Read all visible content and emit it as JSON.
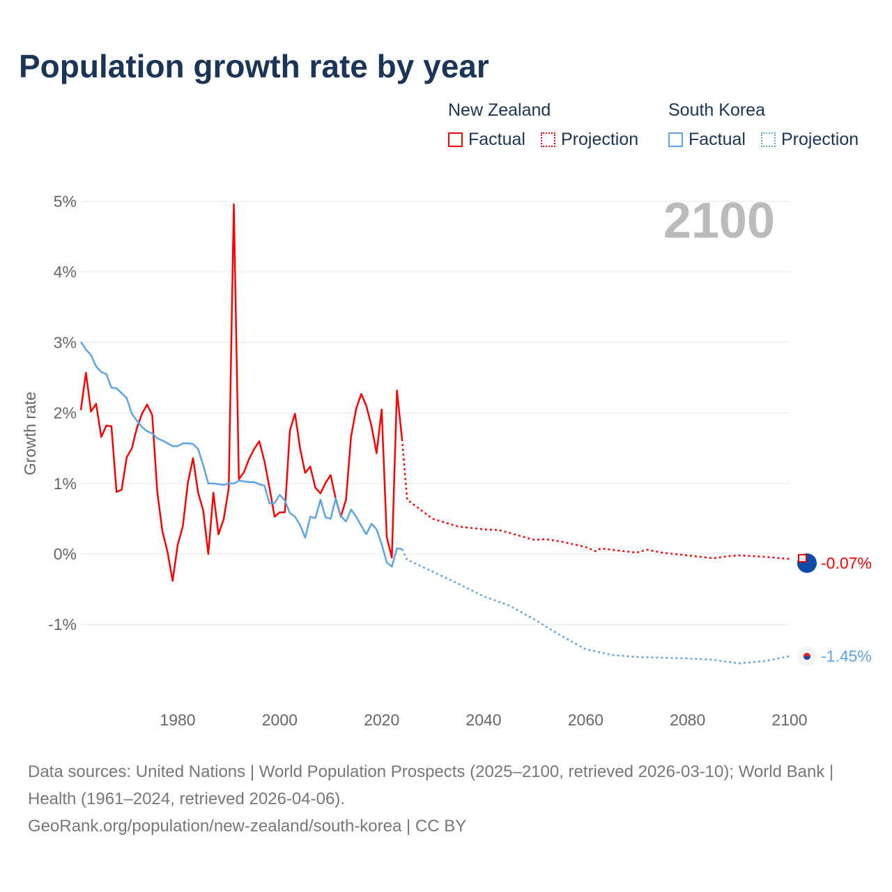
{
  "title": "Population growth rate by year",
  "legend": {
    "groups": [
      {
        "name": "New Zealand",
        "factual": "Factual",
        "projection": "Projection",
        "color": "#ff0000"
      },
      {
        "name": "South Korea",
        "factual": "Factual",
        "projection": "Projection",
        "color": "#5ba4e8"
      }
    ]
  },
  "year_label": "2100",
  "footer": {
    "sources": "Data sources: United Nations | World Population Prospects (2025–2100, retrieved 2026-03-10); World Bank | Health (1961–2024, retrieved 2026-04-06).",
    "link": "GeoRank.org/population/new-zealand/south-korea | CC BY"
  },
  "chart_data": {
    "type": "line",
    "title": "Population growth rate by year",
    "xlabel": "",
    "ylabel": "Growth rate",
    "xlim": [
      1961,
      2100
    ],
    "ylim": [
      -2,
      5
    ],
    "xticks": [
      1980,
      2000,
      2020,
      2040,
      2060,
      2080,
      2100
    ],
    "yticks": [
      -1,
      0,
      1,
      2,
      3,
      4,
      5
    ],
    "ytick_labels": [
      "-1%",
      "0%",
      "1%",
      "2%",
      "3%",
      "4%",
      "5%"
    ],
    "grid": true,
    "legend_placement": "top-right",
    "series": [
      {
        "name": "New Zealand",
        "color": "#ff0000",
        "end_label": "-0.07%",
        "factual_start": 1961,
        "factual": [
          2.04,
          2.57,
          2.02,
          2.13,
          1.66,
          1.82,
          1.81,
          0.88,
          0.91,
          1.37,
          1.5,
          1.79,
          1.99,
          2.12,
          1.97,
          0.88,
          0.32,
          0.03,
          -0.38,
          0.13,
          0.39,
          1.01,
          1.36,
          0.87,
          0.62,
          0.0,
          0.87,
          0.28,
          0.49,
          0.93,
          4.96,
          1.06,
          1.16,
          1.35,
          1.49,
          1.6,
          1.32,
          0.94,
          0.53,
          0.59,
          0.59,
          1.75,
          1.99,
          1.5,
          1.15,
          1.24,
          0.94,
          0.86,
          1.01,
          1.12,
          0.78,
          0.53,
          0.77,
          1.67,
          2.06,
          2.27,
          2.1,
          1.82,
          1.43,
          2.05,
          0.24,
          -0.05,
          2.32,
          1.63
        ],
        "projection_years": [
          2024,
          2025,
          2030,
          2035,
          2040,
          2043,
          2045,
          2050,
          2052,
          2055,
          2060,
          2062,
          2063,
          2065,
          2070,
          2072,
          2075,
          2080,
          2085,
          2088,
          2090,
          2095,
          2100
        ],
        "projection": [
          1.63,
          0.77,
          0.5,
          0.39,
          0.35,
          0.34,
          0.3,
          0.2,
          0.21,
          0.18,
          0.1,
          0.04,
          0.08,
          0.06,
          0.02,
          0.06,
          0.02,
          -0.02,
          -0.06,
          -0.03,
          -0.02,
          -0.04,
          -0.07
        ]
      },
      {
        "name": "South Korea",
        "color": "#5ba4e8",
        "end_label": "-1.45%",
        "factual_start": 1961,
        "factual": [
          3.01,
          2.9,
          2.82,
          2.66,
          2.58,
          2.55,
          2.36,
          2.35,
          2.28,
          2.21,
          1.99,
          1.89,
          1.8,
          1.74,
          1.71,
          1.64,
          1.61,
          1.57,
          1.53,
          1.53,
          1.57,
          1.57,
          1.56,
          1.49,
          1.26,
          1.0,
          1.0,
          0.99,
          0.98,
          1.0,
          1.0,
          1.04,
          1.03,
          1.02,
          1.02,
          0.99,
          0.97,
          0.72,
          0.72,
          0.84,
          0.76,
          0.58,
          0.53,
          0.41,
          0.23,
          0.53,
          0.51,
          0.77,
          0.52,
          0.5,
          0.79,
          0.54,
          0.46,
          0.63,
          0.53,
          0.4,
          0.28,
          0.43,
          0.35,
          0.14,
          -0.12,
          -0.18,
          0.08,
          0.07
        ],
        "projection_years": [
          2024,
          2025,
          2030,
          2035,
          2040,
          2045,
          2050,
          2055,
          2060,
          2065,
          2070,
          2075,
          2080,
          2085,
          2090,
          2095,
          2100
        ],
        "projection": [
          0.07,
          -0.08,
          -0.25,
          -0.42,
          -0.6,
          -0.73,
          -0.93,
          -1.15,
          -1.35,
          -1.43,
          -1.46,
          -1.47,
          -1.48,
          -1.5,
          -1.55,
          -1.52,
          -1.45
        ]
      }
    ]
  }
}
